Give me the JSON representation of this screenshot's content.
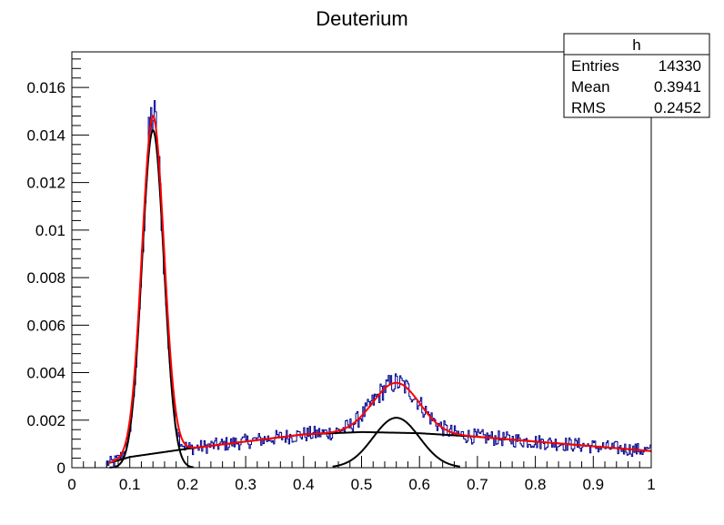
{
  "chart_data": {
    "type": "line",
    "title": "Deuterium",
    "xlabel": "",
    "ylabel": "",
    "xlim": [
      0,
      1
    ],
    "ylim": [
      0,
      0.0175
    ],
    "x_ticks": [
      "0",
      "0.1",
      "0.2",
      "0.3",
      "0.4",
      "0.5",
      "0.6",
      "0.7",
      "0.8",
      "0.9",
      "1"
    ],
    "y_ticks": [
      "0",
      "0.002",
      "0.004",
      "0.006",
      "0.008",
      "0.01",
      "0.012",
      "0.014",
      "0.016"
    ],
    "stats_box": {
      "name": "h",
      "rows": [
        {
          "label": "Entries",
          "value": "14330"
        },
        {
          "label": "Mean",
          "value": "0.3941"
        },
        {
          "label": "RMS",
          "value": "0.2452"
        }
      ]
    },
    "histogram": {
      "name": "h",
      "color": "#00008b",
      "x_range": [
        0.06,
        1.0
      ],
      "bins": 500,
      "peak1": {
        "mean": 0.14,
        "sigma": 0.018,
        "amplitude": 0.0142
      },
      "peak2": {
        "mean": 0.56,
        "sigma": 0.04,
        "amplitude": 0.0021
      },
      "max_value": 0.0166
    },
    "series": [
      {
        "role": "total fit",
        "color": "#ff0000",
        "x_range": [
          0.065,
          1.0
        ]
      },
      {
        "role": "gaussian 1",
        "color": "#000000",
        "mean": 0.14,
        "sigma": 0.019,
        "amplitude": 0.0142,
        "x_range": [
          0.065,
          0.21
        ]
      },
      {
        "role": "gaussian 2",
        "color": "#000000",
        "mean": 0.56,
        "sigma": 0.04,
        "amplitude": 0.0021,
        "x_range": [
          0.45,
          0.67
        ]
      },
      {
        "role": "background",
        "color": "#000000",
        "x_range": [
          0.065,
          1.0
        ],
        "points": [
          [
            0.065,
            0.0002
          ],
          [
            0.1,
            0.00045
          ],
          [
            0.2,
            0.0008
          ],
          [
            0.3,
            0.0011
          ],
          [
            0.4,
            0.0014
          ],
          [
            0.5,
            0.0015
          ],
          [
            0.6,
            0.00145
          ],
          [
            0.7,
            0.0013
          ],
          [
            0.8,
            0.0011
          ],
          [
            0.9,
            0.0009
          ],
          [
            1.0,
            0.0007
          ]
        ]
      }
    ]
  }
}
